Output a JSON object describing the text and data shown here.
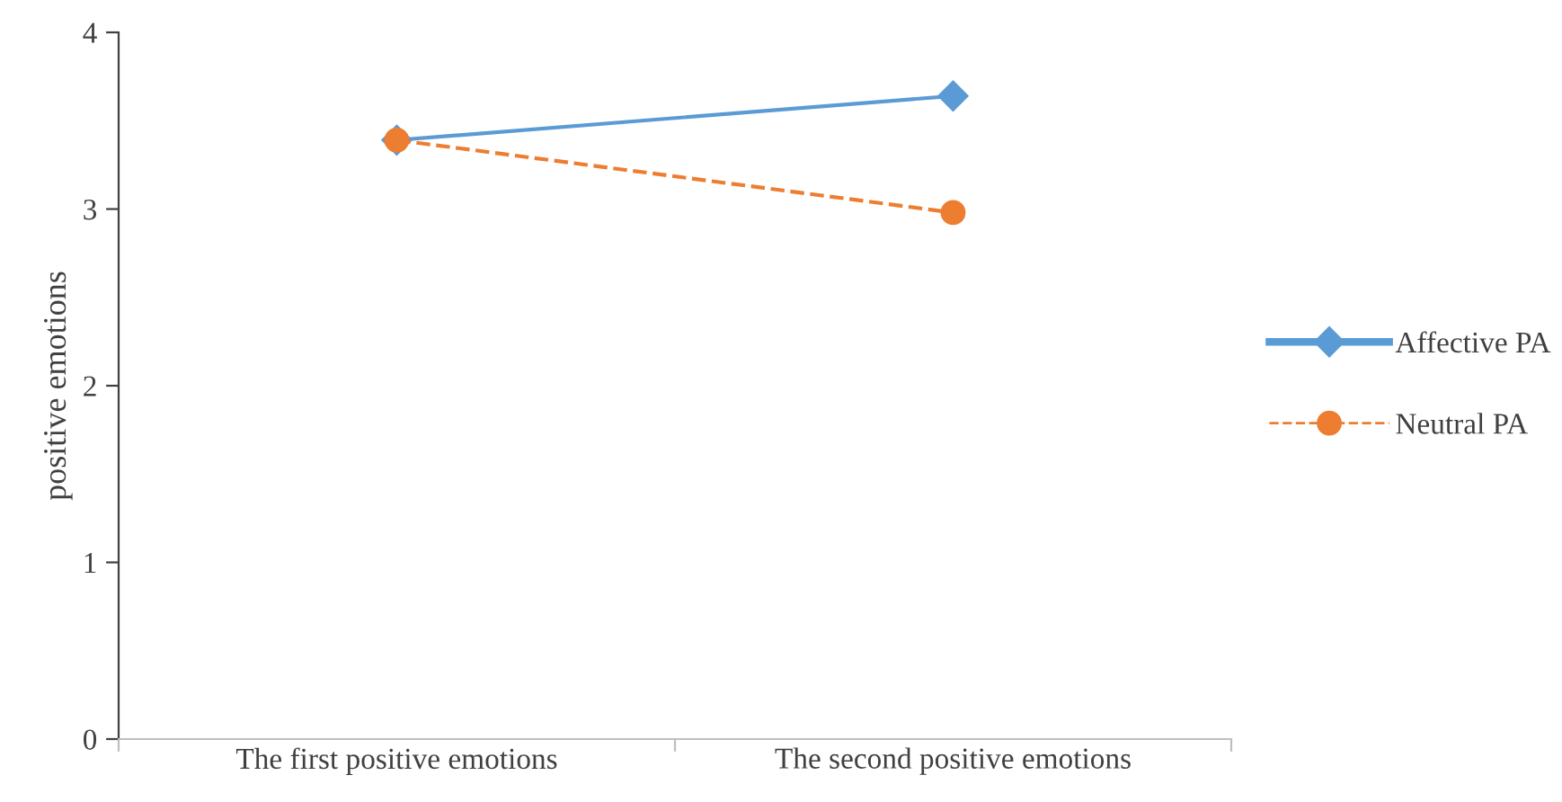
{
  "chart_data": {
    "type": "line",
    "ylabel": "positive emotions",
    "categories": [
      "The first positive emotions",
      "The second positive emotions"
    ],
    "series": [
      {
        "name": "Affective PA",
        "color": "#5b9bd5",
        "values": [
          3.39,
          3.64
        ],
        "marker": "diamond",
        "line_style": "solid"
      },
      {
        "name": "Neutral PA",
        "color": "#ed7d31",
        "values": [
          3.39,
          2.98
        ],
        "marker": "circle",
        "line_style": "dashed"
      }
    ],
    "ylim": [
      0,
      4
    ],
    "yticks": [
      0,
      1,
      2,
      3,
      4
    ],
    "grid": false,
    "legend": "right"
  }
}
